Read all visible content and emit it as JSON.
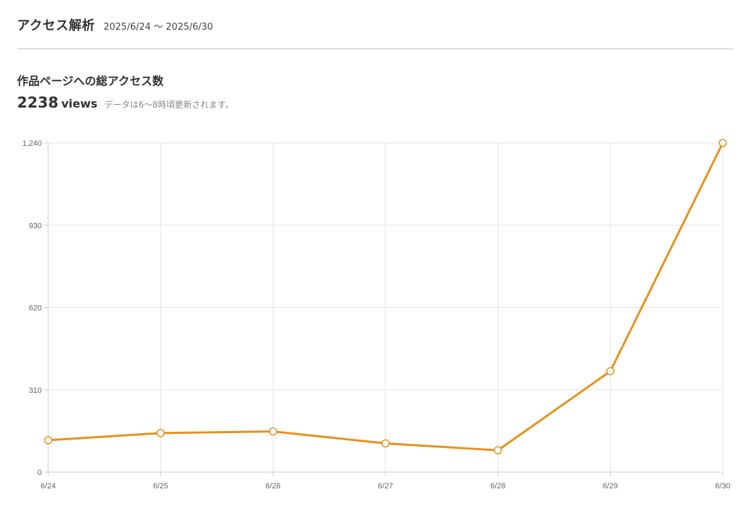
{
  "header": {
    "title": "アクセス解析",
    "date_range": "2025/6/24 〜 2025/6/30"
  },
  "section": {
    "title": "作品ページへの総アクセス数",
    "total_value": "2238",
    "total_unit": "views",
    "note": "データは6〜8時頃更新されます。"
  },
  "colors": {
    "line": "#e8901a",
    "grid": "#e6e6e6",
    "axis": "#cccccc"
  },
  "chart_data": {
    "type": "line",
    "categories": [
      "6/24",
      "6/25",
      "6/26",
      "6/27",
      "6/28",
      "6/29",
      "6/30"
    ],
    "series": [
      {
        "values": [
          120,
          147,
          153,
          108,
          82,
          380,
          1240
        ]
      }
    ],
    "ylim": [
      0,
      1240
    ],
    "yticks": [
      0,
      310,
      620,
      930,
      1240
    ],
    "ytick_labels": [
      "0",
      "310",
      "620",
      "930",
      "1,240"
    ],
    "grid": true,
    "legend": "none",
    "marker": "hollow-circle"
  }
}
